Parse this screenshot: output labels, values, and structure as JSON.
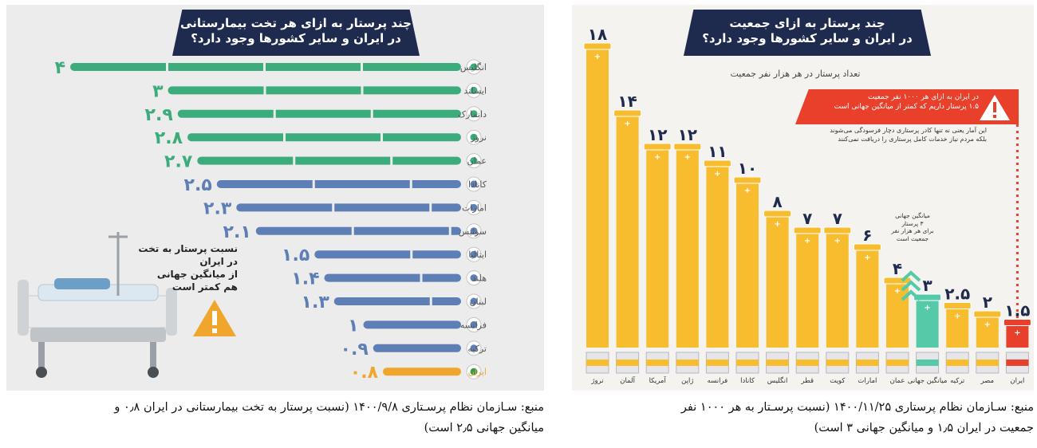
{
  "left": {
    "title_line1": "چند پرستار به ازای هر تخت بیمارستانی",
    "title_line2": "در ایران و سایر کشورها وجود دارد؟",
    "note_lines": [
      "نسبت پرستار به تخت",
      "در ایران",
      "از میانگین جهانی",
      "هم کمتر است"
    ],
    "caption_line1": "منبع: سـازمان نظام پرسـتاری ۱۴۰۰/۹/۸ (نسبت پرستار به تخت بیمارستانی در ایران ۰٫۸ و",
    "caption_line2": "میانگین جهانی ۲٫۵ است)",
    "colors": {
      "above_avg": "#3dac7c",
      "below_avg": "#5d7fb6",
      "iran": "#f0a52c",
      "label": "#555555"
    },
    "icons": [
      "warning-icon",
      "hospital-bed-illustration"
    ],
    "chart_data": {
      "type": "bar",
      "orientation": "horizontal",
      "title": "چند پرستار به ازای هر تخت بیمارستانی در ایران و سایر کشورها وجود دارد؟",
      "categories": [
        "انگلیس",
        "ایسلند",
        "دانمارک",
        "نروژ",
        "عمان",
        "کانادا",
        "امارات",
        "سوئیس",
        "ایتالیا",
        "هلند",
        "لبنان",
        "فرانسه",
        "ترکیه",
        "ایران"
      ],
      "values": [
        4,
        3,
        2.9,
        2.8,
        2.7,
        2.5,
        2.3,
        2.1,
        1.5,
        1.4,
        1.3,
        1,
        0.9,
        0.8
      ],
      "value_labels": [
        "۴",
        "۳",
        "۲.۹",
        "۲.۸",
        "۲.۷",
        "۲.۵",
        "۲.۳",
        "۲.۱",
        "۱.۵",
        "۱.۴",
        "۱.۳",
        "۱",
        "۰.۹",
        "۰.۸"
      ],
      "bar_colors": [
        "green",
        "green",
        "green",
        "green",
        "green",
        "blue",
        "blue",
        "blue",
        "blue",
        "blue",
        "blue",
        "blue",
        "blue",
        "orange"
      ],
      "flags": [
        "england-flag-icon",
        "iceland-flag-icon",
        "denmark-flag-icon",
        "norway-flag-icon",
        "oman-flag-icon",
        "canada-flag-icon",
        "uae-flag-icon",
        "switzerland-flag-icon",
        "italy-flag-icon",
        "netherlands-flag-icon",
        "lebanon-flag-icon",
        "france-flag-icon",
        "turkey-flag-icon",
        "iran-flag-icon"
      ],
      "xlim": [
        0,
        4
      ],
      "grid": false
    }
  },
  "right": {
    "title_line1": "چند پرستار به ازای جمعیت",
    "title_line2": "در ایران و سایر کشورها وجود دارد؟",
    "subtitle": "تعداد پرستار در هر هزار نفر جمعیت",
    "alert_line1": "در ایران به ازای هر ۱۰۰۰ نفر جمعیت",
    "alert_line2": "۱.۵ پرستار داریم که کمتر از میانگین جهانی است",
    "note_line1": "این آمار یعنی نه تنها کادر پرستاری دچار فرسودگی می‌شوند",
    "note_line2": "بلکه مردم نیاز خدمات کامل پرستاری را دریافت نمی‌کنند",
    "avg_note_lines": [
      "میانگین جهانی",
      "۳ پرستار",
      "برای هر هزار نفر",
      "جمعیت است"
    ],
    "caption_line1": "منبع: سـازمان نظام پرستاری ۱۴۰۰/۱۱/۲۵ (نسبت پرسـتار به هر ۱۰۰۰ نفر",
    "caption_line2": "جمعیت در ایران ۱٫۵ و میانگین جهانی ۳ است)",
    "colors": {
      "bar": "#f7bd2f",
      "avg_bar": "#55c9a8",
      "iran_bar": "#e8402b",
      "label": "#1f2b4e",
      "alert": "#e8402b"
    },
    "icons": [
      "warning-icon",
      "chevron-up-icon"
    ],
    "chart_data": {
      "type": "bar",
      "orientation": "vertical",
      "title": "چند پرستار به ازای جمعیت در ایران و سایر کشورها وجود دارد؟",
      "ylabel": "تعداد پرستار در هر هزار نفر جمعیت",
      "categories": [
        "نروژ",
        "آلمان",
        "آمریکا",
        "ژاپن",
        "فرانسه",
        "کانادا",
        "انگلیس",
        "قطر",
        "کویت",
        "امارات",
        "عمان",
        "میانگین جهانی",
        "ترکیه",
        "مصر",
        "ایران"
      ],
      "values": [
        18,
        14,
        12,
        12,
        11,
        10,
        8,
        7,
        7,
        6,
        4,
        3,
        2.5,
        2,
        1.5
      ],
      "value_labels": [
        "۱۸",
        "۱۴",
        "۱۲",
        "۱۲",
        "۱۱",
        "۱۰",
        "۸",
        "۷",
        "۷",
        "۶",
        "۴",
        "۳",
        "۲.۵",
        "۲",
        "۱.۵"
      ],
      "bar_colors": [
        "yellow",
        "yellow",
        "yellow",
        "yellow",
        "yellow",
        "yellow",
        "yellow",
        "yellow",
        "yellow",
        "yellow",
        "yellow",
        "teal",
        "yellow",
        "yellow",
        "red"
      ],
      "flags": [
        "norway-flag-icon",
        "germany-flag-icon",
        "usa-flag-icon",
        "japan-flag-icon",
        "france-flag-icon",
        "canada-flag-icon",
        "england-flag-icon",
        "qatar-flag-icon",
        "kuwait-flag-icon",
        "uae-flag-icon",
        "oman-flag-icon",
        "globe-icon",
        "turkey-flag-icon",
        "egypt-flag-icon",
        "iran-flag-icon"
      ],
      "ylim": [
        0,
        18
      ],
      "grid": false
    }
  }
}
